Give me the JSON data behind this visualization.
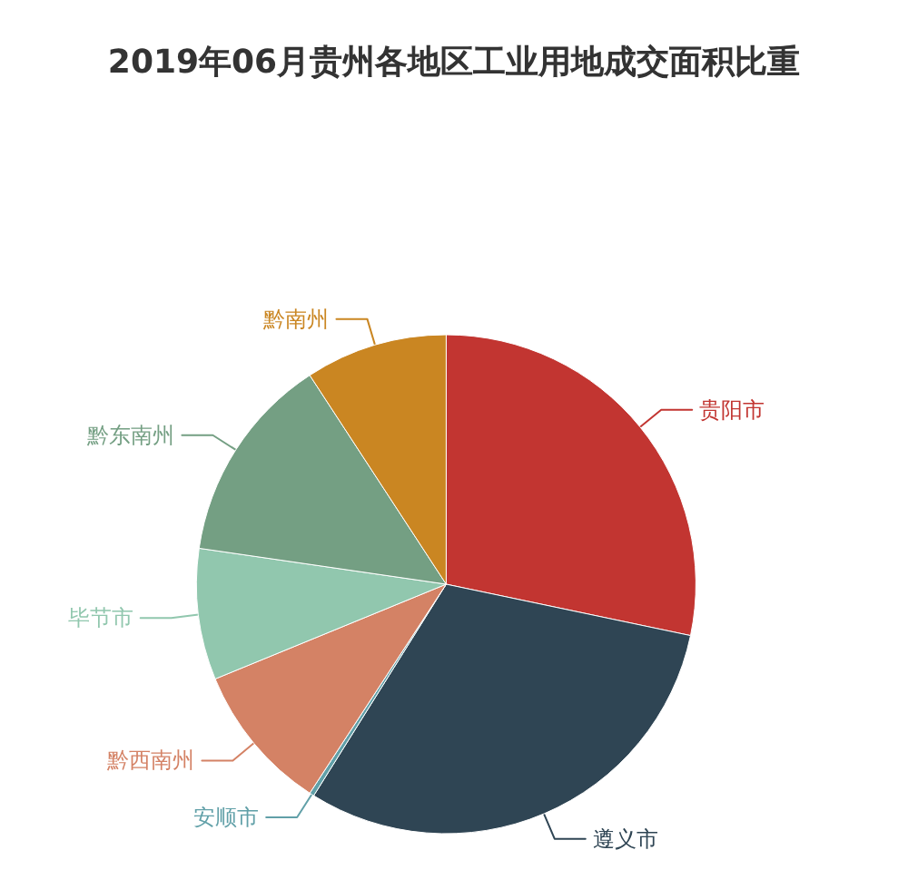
{
  "chart_data": {
    "type": "pie",
    "title": "2019年06月贵州各地区工业用地成交面积比重",
    "categories": [
      "贵阳市",
      "遵义市",
      "安顺市",
      "黔西南州",
      "毕节市",
      "黔东南州",
      "黔南州"
    ],
    "values": [
      28.3,
      30.6,
      0.3,
      9.6,
      8.5,
      13.5,
      9.2
    ],
    "colors": [
      "#c23531",
      "#2f4554",
      "#61a0a8",
      "#d48265",
      "#91c7ae",
      "#749f83",
      "#ca8622"
    ]
  }
}
